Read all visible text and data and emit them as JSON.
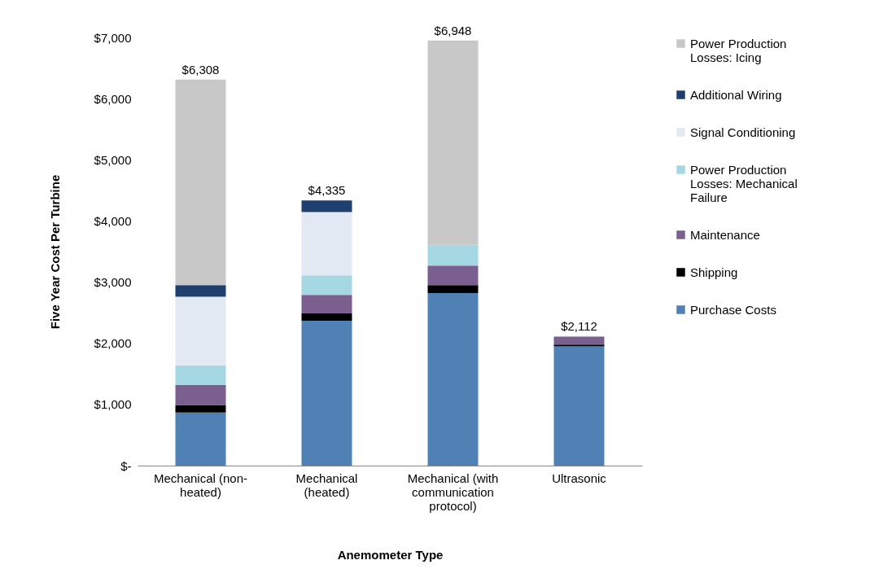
{
  "chart_data": {
    "type": "bar",
    "stacked": true,
    "xlabel": "Anemometer Type",
    "ylabel": "Five Year Cost Per Turbine",
    "categories": [
      "Mechanical (non-heated)",
      "Mechanical (heated)",
      "Mechanical (with communication protocol)",
      "Ultrasonic"
    ],
    "series": [
      {
        "name": "Purchase Costs",
        "color": "#4f81b4",
        "values": [
          870,
          2370,
          2820,
          1950
        ]
      },
      {
        "name": "Shipping",
        "color": "#000000",
        "values": [
          120,
          120,
          130,
          30
        ]
      },
      {
        "name": "Maintenance",
        "color": "#7b5f8f",
        "values": [
          330,
          300,
          320,
          130
        ]
      },
      {
        "name": "Power Production Losses: Mechanical Failure",
        "color": "#a6d8e4",
        "values": [
          320,
          320,
          340,
          0
        ]
      },
      {
        "name": "Signal Conditioning",
        "color": "#e3e9f3",
        "values": [
          1120,
          1035,
          0,
          0
        ]
      },
      {
        "name": "Additional Wiring",
        "color": "#1f3f6f",
        "values": [
          190,
          190,
          0,
          0
        ]
      },
      {
        "name": "Power Production Losses: Icing",
        "color": "#c8c8c8",
        "values": [
          3360,
          0,
          3340,
          0
        ]
      }
    ],
    "totals": [
      "$6,308",
      "$4,335",
      "$6,948",
      "$2,112"
    ],
    "ylim": [
      0,
      7000
    ],
    "yticks": [
      {
        "value": 0,
        "label": "$-"
      },
      {
        "value": 1000,
        "label": "$1,000"
      },
      {
        "value": 2000,
        "label": "$2,000"
      },
      {
        "value": 3000,
        "label": "$3,000"
      },
      {
        "value": 4000,
        "label": "$4,000"
      },
      {
        "value": 5000,
        "label": "$5,000"
      },
      {
        "value": 6000,
        "label": "$6,000"
      },
      {
        "value": 7000,
        "label": "$7,000"
      }
    ],
    "legend": "right"
  }
}
